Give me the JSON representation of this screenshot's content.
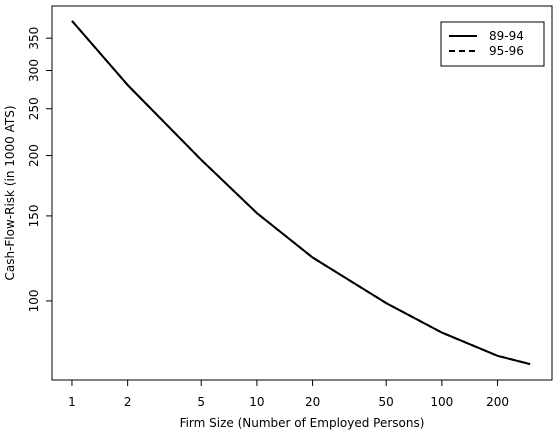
{
  "chart_data": {
    "type": "line",
    "x_label": "Firm Size (Number of Employed Persons)",
    "y_label": "Cash-Flow-Risk (in 1000 ATS)",
    "x": [
      1,
      2,
      5,
      10,
      20,
      50,
      100,
      200,
      300
    ],
    "series": [
      {
        "name": "89-94",
        "color": "#000000",
        "dash": "solid",
        "values": [
          380,
          280,
          196,
          152,
          123,
          99,
          86,
          77,
          74
        ]
      },
      {
        "name": "95-96",
        "color": "#000000",
        "dash": "dashed",
        "values": [
          380,
          280,
          196,
          152,
          123,
          99,
          86,
          77,
          74
        ]
      }
    ],
    "xlog": true,
    "ylog": true,
    "xlim": [
      0.78,
      394
    ],
    "ylim": [
      68.6,
      408
    ],
    "xticks": [
      1,
      2,
      5,
      10,
      20,
      50,
      100,
      200
    ],
    "yticks": [
      100,
      150,
      200,
      250,
      300,
      350
    ],
    "legend": "top-right"
  }
}
